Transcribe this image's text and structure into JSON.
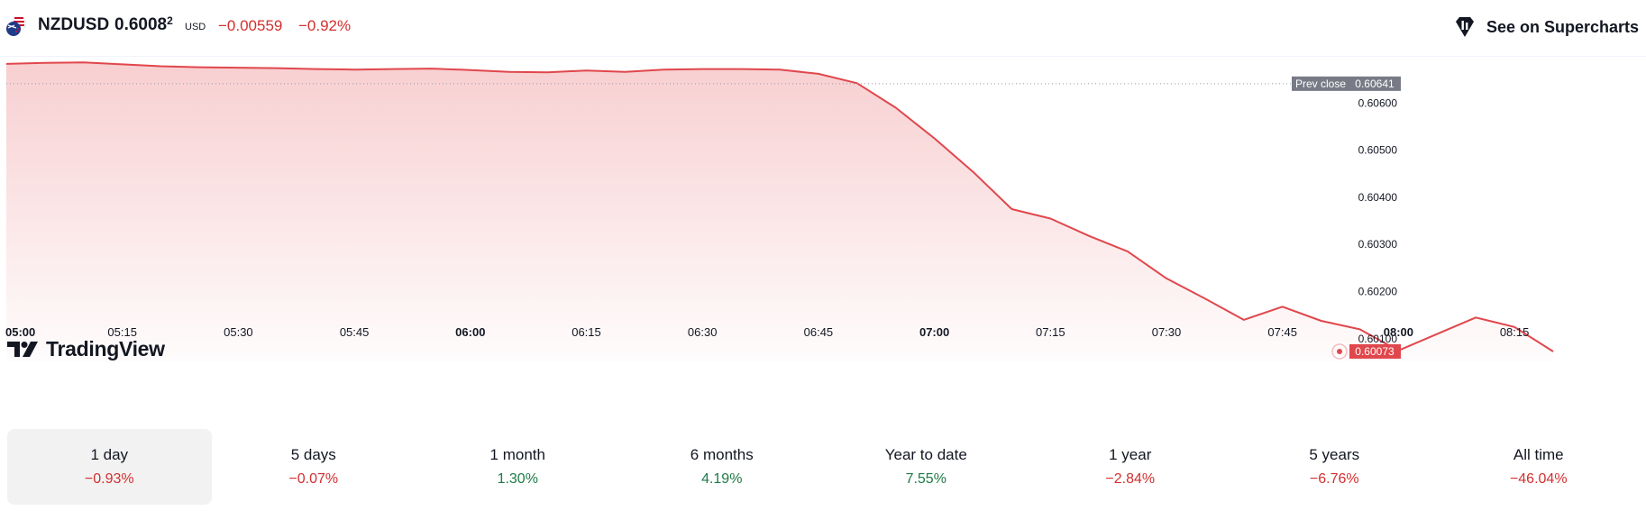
{
  "header": {
    "symbol": "NZDUSD",
    "price_main": "0.6008",
    "price_sup": "2",
    "currency": "USD",
    "change": "−0.00559",
    "change_percent": "−0.92%",
    "supercharts_label": "See on Supercharts",
    "flag_icon": "nz-us-flag-icon",
    "supercharts_icon": "supercharts-icon"
  },
  "branding": {
    "logo_text": "TradingView"
  },
  "chart_data": {
    "type": "area",
    "x": [
      "05:00",
      "05:05",
      "05:10",
      "05:15",
      "05:20",
      "05:25",
      "05:30",
      "05:35",
      "05:40",
      "05:45",
      "05:50",
      "05:55",
      "06:00",
      "06:05",
      "06:10",
      "06:15",
      "06:20",
      "06:25",
      "06:30",
      "06:35",
      "06:40",
      "06:45",
      "06:50",
      "06:55",
      "07:00",
      "07:05",
      "07:10",
      "07:15",
      "07:20",
      "07:25",
      "07:30",
      "07:35",
      "07:40",
      "07:45",
      "07:50",
      "07:55",
      "08:00",
      "08:05",
      "08:10",
      "08:15",
      "08:20"
    ],
    "values": [
      0.60683,
      0.60685,
      0.60686,
      0.60682,
      0.60678,
      0.60676,
      0.60675,
      0.60674,
      0.60672,
      0.60671,
      0.60672,
      0.60673,
      0.6067,
      0.60666,
      0.60665,
      0.60669,
      0.60666,
      0.60671,
      0.60672,
      0.60672,
      0.60671,
      0.60662,
      0.60642,
      0.6059,
      0.60525,
      0.60454,
      0.60375,
      0.60355,
      0.60318,
      0.60285,
      0.60228,
      0.60185,
      0.6014,
      0.60168,
      0.60138,
      0.6012,
      0.60075,
      0.6011,
      0.60145,
      0.60125,
      0.60073
    ],
    "x_ticks": [
      {
        "label": "05:00",
        "bold": true
      },
      {
        "label": "05:15",
        "bold": false
      },
      {
        "label": "05:30",
        "bold": false
      },
      {
        "label": "05:45",
        "bold": false
      },
      {
        "label": "06:00",
        "bold": true
      },
      {
        "label": "06:15",
        "bold": false
      },
      {
        "label": "06:30",
        "bold": false
      },
      {
        "label": "06:45",
        "bold": false
      },
      {
        "label": "07:00",
        "bold": true
      },
      {
        "label": "07:15",
        "bold": false
      },
      {
        "label": "07:30",
        "bold": false
      },
      {
        "label": "07:45",
        "bold": false
      },
      {
        "label": "08:00",
        "bold": true
      },
      {
        "label": "08:15",
        "bold": false
      }
    ],
    "y_ticks": [
      "0.60600",
      "0.60500",
      "0.60400",
      "0.60300",
      "0.60200",
      "0.60100"
    ],
    "ylim": [
      0.6005,
      0.607
    ],
    "prev_close": {
      "label": "Prev close",
      "value": 0.60641,
      "value_label": "0.60641"
    },
    "last_value_label": "0.60073",
    "line_color": "#e0474c",
    "fill_color": "#f5bfc1",
    "grid": false
  },
  "periods": [
    {
      "label": "1 day",
      "value": "−0.93%",
      "sign": "neg",
      "active": true
    },
    {
      "label": "5 days",
      "value": "−0.07%",
      "sign": "neg",
      "active": false
    },
    {
      "label": "1 month",
      "value": "1.30%",
      "sign": "pos",
      "active": false
    },
    {
      "label": "6 months",
      "value": "4.19%",
      "sign": "pos",
      "active": false
    },
    {
      "label": "Year to date",
      "value": "7.55%",
      "sign": "pos",
      "active": false
    },
    {
      "label": "1 year",
      "value": "−2.84%",
      "sign": "neg",
      "active": false
    },
    {
      "label": "5 years",
      "value": "−6.76%",
      "sign": "neg",
      "active": false
    },
    {
      "label": "All time",
      "value": "−46.04%",
      "sign": "neg",
      "active": false
    }
  ]
}
